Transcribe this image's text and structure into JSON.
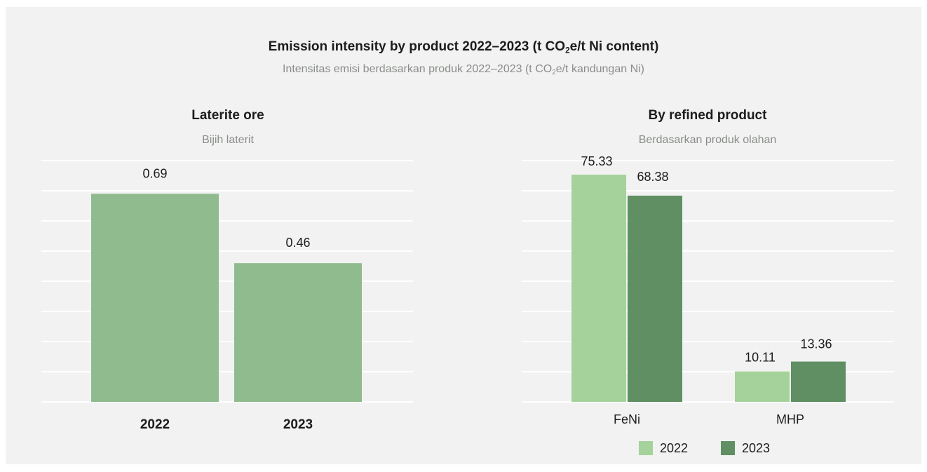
{
  "title": {
    "main_pre": "Emission intensity by product 2022–2023 (t CO",
    "main_sub": "2",
    "main_post": "e/t Ni content)",
    "sub_pre": "Intensitas emisi berdasarkan produk 2022–2023 (t CO",
    "sub_sub": "2",
    "sub_post": "e/t kandungan Ni)"
  },
  "colors": {
    "background": "#f1f2f1",
    "ore_bar": "#8fbb8f",
    "series_2022": "#a5d29a",
    "series_2023": "#5f8f62",
    "grid": "#ffffff"
  },
  "chart_data": [
    {
      "type": "bar",
      "title": "Laterite ore",
      "subtitle": "Bijih laterit",
      "categories": [
        "2022",
        "2023"
      ],
      "values": [
        0.69,
        0.46
      ],
      "value_labels": [
        "0.69",
        "0.46"
      ],
      "ylim": [
        0,
        0.8
      ],
      "grid": true
    },
    {
      "type": "bar",
      "title": "By refined product",
      "subtitle": "Berdasarkan produk olahan",
      "categories": [
        "FeNi",
        "MHP"
      ],
      "series": [
        {
          "name": "2022",
          "values": [
            75.33,
            10.11
          ],
          "value_labels": [
            "75.33",
            "10.11"
          ]
        },
        {
          "name": "2023",
          "values": [
            68.38,
            13.36
          ],
          "value_labels": [
            "68.38",
            "13.36"
          ]
        }
      ],
      "ylim": [
        0,
        80
      ],
      "grid": true,
      "legend": "bottom"
    }
  ]
}
